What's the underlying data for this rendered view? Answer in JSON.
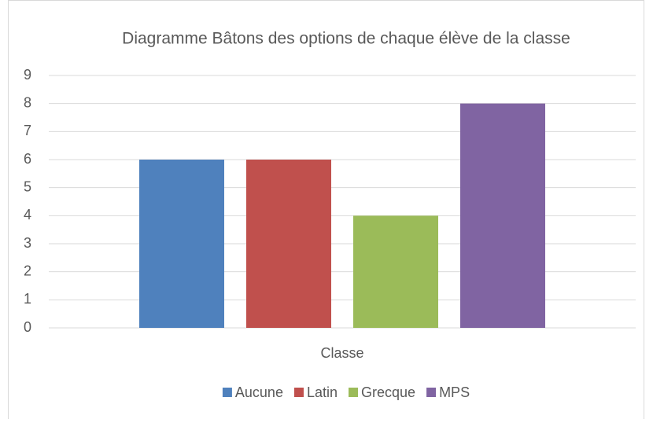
{
  "chart_data": {
    "type": "bar",
    "title": "Diagramme Bâtons des options de chaque élève de la classe",
    "categories": [
      "Classe"
    ],
    "series": [
      {
        "name": "Aucune",
        "color": "#4f81bd",
        "values": [
          6
        ]
      },
      {
        "name": "Latin",
        "color": "#c0504d",
        "values": [
          6
        ]
      },
      {
        "name": "Grecque",
        "color": "#9bbb59",
        "values": [
          4
        ]
      },
      {
        "name": "MPS",
        "color": "#8064a2",
        "values": [
          8
        ]
      }
    ],
    "ylim": [
      0,
      9
    ],
    "yticks": [
      0,
      1,
      2,
      3,
      4,
      5,
      6,
      7,
      8,
      9
    ],
    "grid": true,
    "legend": "bottom"
  }
}
